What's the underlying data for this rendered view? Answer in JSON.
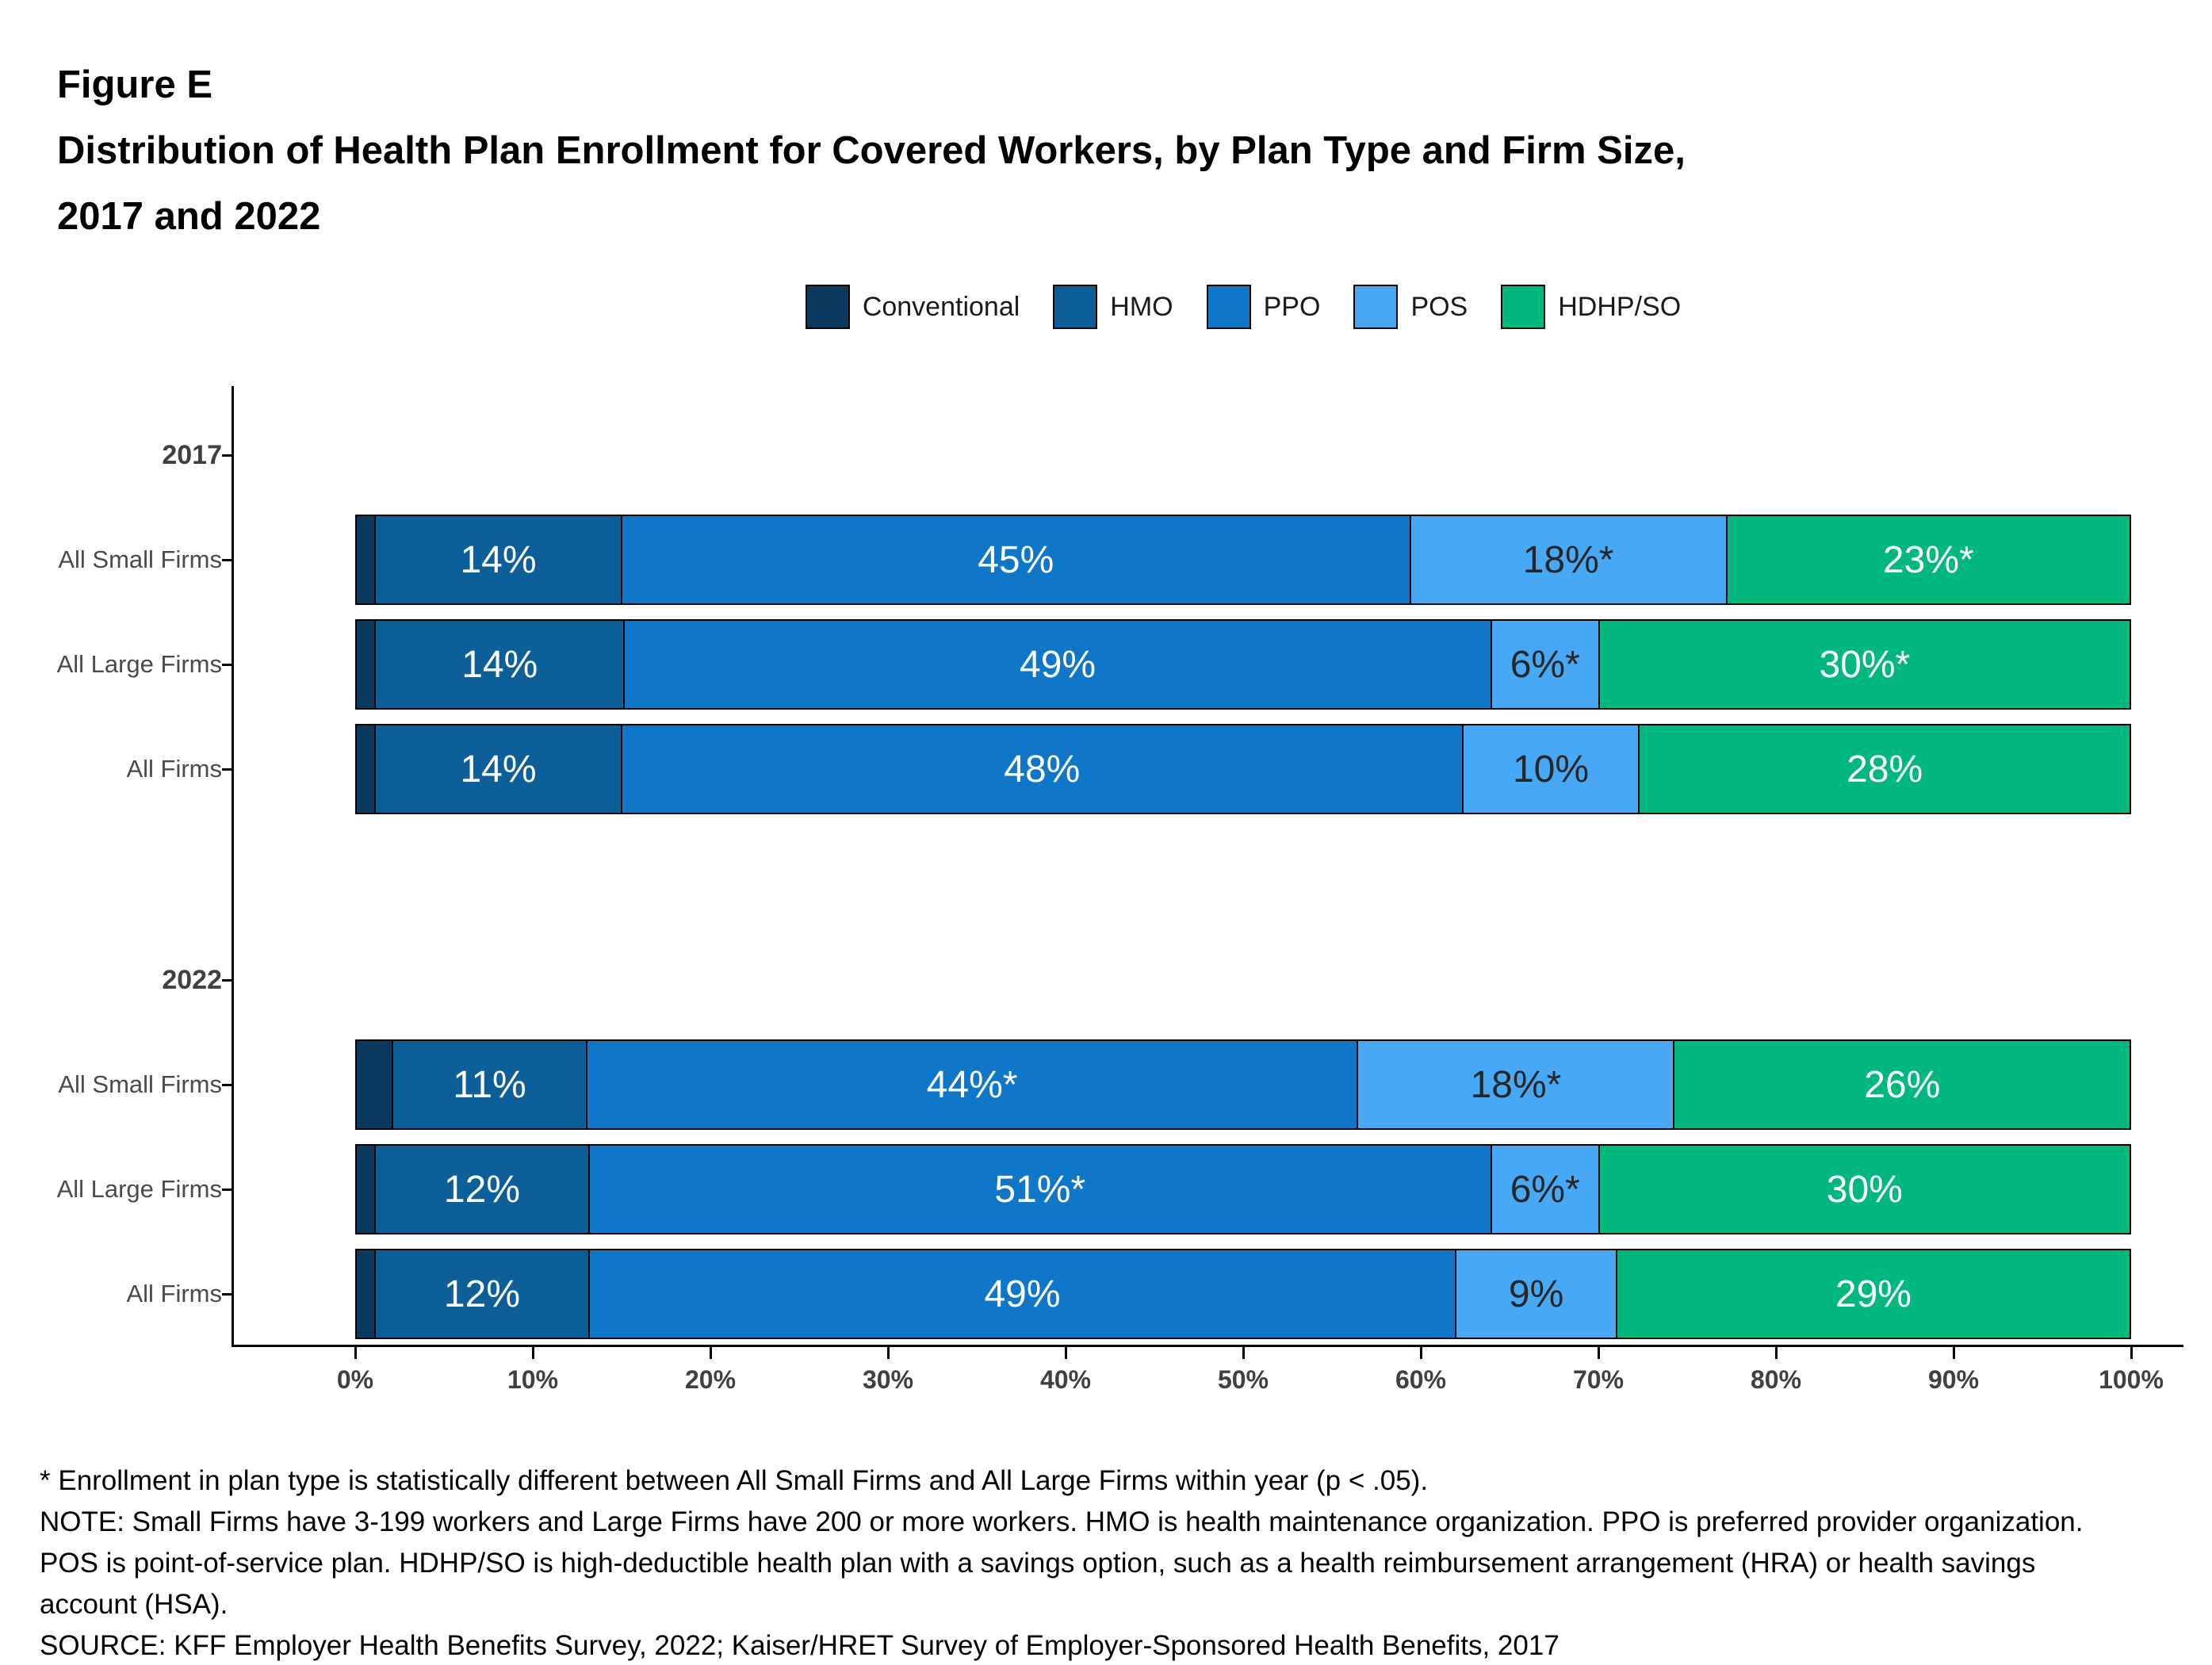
{
  "figure": {
    "label": "Figure E",
    "title_lines": [
      "Distribution of Health Plan Enrollment for Covered Workers, by Plan Type and Firm Size,",
      "2017 and 2022"
    ]
  },
  "legend": [
    {
      "label": "Conventional",
      "color": "#0c3a5e",
      "value_text_color": "#ffffff"
    },
    {
      "label": "HMO",
      "color": "#0d5f99",
      "value_text_color": "#ffffff"
    },
    {
      "label": "PPO",
      "color": "#0f76c8",
      "value_text_color": "#ffffff"
    },
    {
      "label": "POS",
      "color": "#47a9f5",
      "value_text_color": "#262626"
    },
    {
      "label": "HDHP/SO",
      "color": "#00b87e",
      "value_text_color": "#ffffff"
    }
  ],
  "chart_data": {
    "type": "bar",
    "orientation": "horizontal",
    "stacked": true,
    "unit": "%",
    "x_axis": {
      "range": [
        0,
        100
      ],
      "tick_labels": [
        "0%",
        "10%",
        "20%",
        "30%",
        "40%",
        "50%",
        "60%",
        "70%",
        "80%",
        "90%",
        "100%"
      ]
    },
    "plan_types": [
      "Conventional",
      "HMO",
      "PPO",
      "POS",
      "HDHP/SO"
    ],
    "groups": [
      {
        "year": "2017",
        "rows": [
          {
            "label": "All Small Firms",
            "segments": [
              {
                "plan": "Conventional",
                "value": 1,
                "text": ""
              },
              {
                "plan": "HMO",
                "value": 14,
                "text": "14%"
              },
              {
                "plan": "PPO",
                "value": 45,
                "text": "45%"
              },
              {
                "plan": "POS",
                "value": 18,
                "text": "18%*"
              },
              {
                "plan": "HDHP/SO",
                "value": 23,
                "text": "23%*"
              }
            ]
          },
          {
            "label": "All Large Firms",
            "segments": [
              {
                "plan": "Conventional",
                "value": 1,
                "text": ""
              },
              {
                "plan": "HMO",
                "value": 14,
                "text": "14%"
              },
              {
                "plan": "PPO",
                "value": 49,
                "text": "49%"
              },
              {
                "plan": "POS",
                "value": 6,
                "text": "6%*"
              },
              {
                "plan": "HDHP/SO",
                "value": 30,
                "text": "30%*"
              }
            ]
          },
          {
            "label": "All Firms",
            "segments": [
              {
                "plan": "Conventional",
                "value": 1,
                "text": ""
              },
              {
                "plan": "HMO",
                "value": 14,
                "text": "14%"
              },
              {
                "plan": "PPO",
                "value": 48,
                "text": "48%"
              },
              {
                "plan": "POS",
                "value": 10,
                "text": "10%"
              },
              {
                "plan": "HDHP/SO",
                "value": 28,
                "text": "28%"
              }
            ]
          }
        ]
      },
      {
        "year": "2022",
        "rows": [
          {
            "label": "All Small Firms",
            "segments": [
              {
                "plan": "Conventional",
                "value": 2,
                "text": ""
              },
              {
                "plan": "HMO",
                "value": 11,
                "text": "11%"
              },
              {
                "plan": "PPO",
                "value": 44,
                "text": "44%*"
              },
              {
                "plan": "POS",
                "value": 18,
                "text": "18%*"
              },
              {
                "plan": "HDHP/SO",
                "value": 26,
                "text": "26%"
              }
            ]
          },
          {
            "label": "All Large Firms",
            "segments": [
              {
                "plan": "Conventional",
                "value": 1,
                "text": ""
              },
              {
                "plan": "HMO",
                "value": 12,
                "text": "12%"
              },
              {
                "plan": "PPO",
                "value": 51,
                "text": "51%*"
              },
              {
                "plan": "POS",
                "value": 6,
                "text": "6%*"
              },
              {
                "plan": "HDHP/SO",
                "value": 30,
                "text": "30%"
              }
            ]
          },
          {
            "label": "All Firms",
            "segments": [
              {
                "plan": "Conventional",
                "value": 1,
                "text": ""
              },
              {
                "plan": "HMO",
                "value": 12,
                "text": "12%"
              },
              {
                "plan": "PPO",
                "value": 49,
                "text": "49%"
              },
              {
                "plan": "POS",
                "value": 9,
                "text": "9%"
              },
              {
                "plan": "HDHP/SO",
                "value": 29,
                "text": "29%"
              }
            ]
          }
        ]
      }
    ]
  },
  "footnotes": [
    "* Enrollment in plan type is statistically different between All Small Firms and All Large Firms within year (p < .05).",
    "NOTE: Small Firms have 3-199 workers and Large Firms have 200 or more workers. HMO is health maintenance organization. PPO is preferred provider organization. POS is point-of-service plan. HDHP/SO is high-deductible health plan with a savings option, such as a health reimbursement arrangement (HRA) or health savings account (HSA).",
    "SOURCE: KFF Employer Health Benefits Survey, 2022; Kaiser/HRET Survey of Employer-Sponsored Health Benefits, 2017"
  ]
}
